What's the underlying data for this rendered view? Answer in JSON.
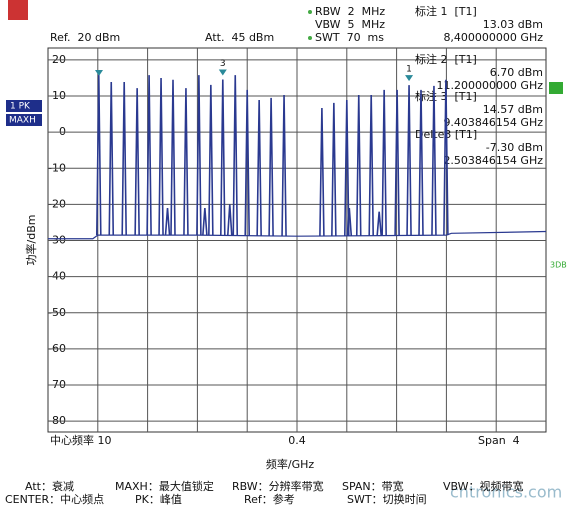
{
  "chart_data": {
    "type": "line",
    "color": "#2a3990",
    "grid": true,
    "ylim": [
      -83,
      23.3
    ],
    "yticks": [
      20,
      10,
      0,
      -10,
      -20,
      -30,
      -40,
      -50,
      -60,
      -70,
      -80
    ],
    "ylabel": "功率/dBm",
    "xlabel": "频率/GHz",
    "xlim": [
      0,
      10
    ],
    "x_labels": {
      "left": "中心频率 10",
      "center": "0.4",
      "right": "Span  4"
    },
    "x": [
      1.02,
      1.27,
      1.53,
      1.79,
      2.03,
      2.27,
      2.51,
      2.77,
      3.03,
      3.27,
      3.76,
      4.0,
      4.24,
      4.48,
      4.74,
      5.5,
      5.74,
      6.0,
      6.24,
      6.49,
      6.75,
      7.01,
      7.49,
      7.75,
      7.99,
      2.4,
      3.15,
      3.65,
      6.05,
      6.65
    ],
    "values": [
      15.8,
      13.9,
      13.9,
      12.2,
      15.8,
      15.0,
      14.5,
      12.2,
      15.8,
      13.1,
      15.8,
      11.7,
      8.9,
      9.5,
      10.3,
      6.7,
      8.1,
      8.9,
      10.3,
      10.3,
      11.7,
      11.7,
      11.7,
      12.8,
      14.5,
      -21,
      -21,
      -20,
      -21,
      -22
    ],
    "floor": {
      "x": [
        0,
        0.9,
        1.0,
        3,
        5,
        8,
        8.1,
        10
      ],
      "values": [
        -29.5,
        -29.5,
        -28.5,
        -28.5,
        -28.8,
        -28.5,
        -28.0,
        -27.5
      ]
    },
    "markers": [
      {
        "label": "3",
        "x": 3.51,
        "value": 14.57
      },
      {
        "label": "1",
        "x": 7.25,
        "value": 13.03
      }
    ]
  },
  "header": {
    "ref": "Ref.  20 dBm",
    "att": "Att.  45 dBm",
    "rbw": "RBW  2  MHz",
    "vbw": "VBW  5  MHz",
    "swt": "SWT  70  ms"
  },
  "marker_table": [
    {
      "title": "标注 1  [T1]",
      "level": "13.03 dBm",
      "freq": "8,400000000 GHz"
    },
    {
      "title": "标注 2  [T1]",
      "level": "6.70 dBm",
      "freq": "11.200000000 GHz"
    },
    {
      "title": "标注 3  [T1]",
      "level": "14.57 dBm",
      "freq": "9.403846154 GHz"
    },
    {
      "title": "Delte3 [T1]",
      "level": "-7.30 dBm",
      "freq": "2.503846154 GHz"
    }
  ],
  "side": {
    "trace": "1 PK",
    "mode": "MAXH",
    "db": "3DB"
  },
  "footer": {
    "row1": [
      "Att：衰减",
      "MAXH：最大值锁定",
      "RBW：分辨率带宽",
      "SPAN：带宽",
      "VBW：视频带宽"
    ],
    "row2": [
      "CENTER：中心频点",
      "PK：峰值",
      "Ref：参考",
      "SWT：切换时间"
    ],
    "watermark": "cntronics.com"
  }
}
